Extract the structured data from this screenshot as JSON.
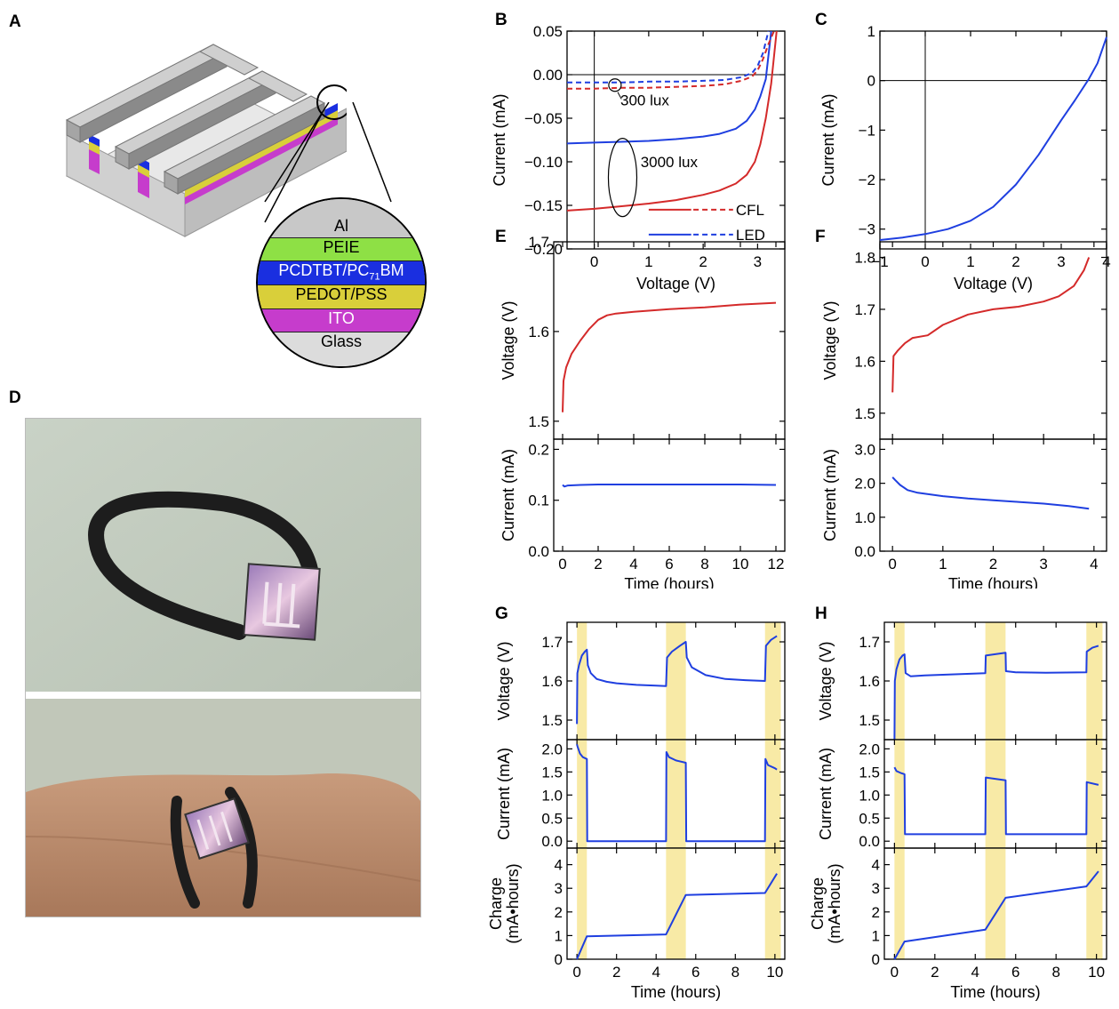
{
  "panel_letters": {
    "A": "A",
    "B": "B",
    "C": "C",
    "D": "D",
    "E": "E",
    "F": "F",
    "G": "G",
    "H": "H"
  },
  "device_layers": [
    {
      "label": "Al",
      "sub": "",
      "color": "#c8c8c8",
      "text_color": "#000"
    },
    {
      "label": "PEIE",
      "sub": "",
      "color": "#8ee045",
      "text_color": "#000"
    },
    {
      "label": "PCDTBT/PC",
      "sub": "71",
      "suffix": "BM",
      "color": "#1a2fe0",
      "text_color": "#ffffff"
    },
    {
      "label": "PEDOT/PSS",
      "sub": "",
      "color": "#d9cf3a",
      "text_color": "#000"
    },
    {
      "label": "ITO",
      "sub": "",
      "color": "#c63ccc",
      "text_color": "#ffffff"
    },
    {
      "label": "Glass",
      "sub": "",
      "color": "#dcdcdc",
      "text_color": "#000"
    }
  ],
  "colors": {
    "red": "#d42a2a",
    "blue": "#1f3fe0",
    "yellow_band": "#f8eaa6"
  },
  "chart_data": [
    {
      "id": "B",
      "type": "line",
      "xlabel": "Voltage (V)",
      "ylabel": "Current (mA)",
      "xlim": [
        -0.5,
        3.5
      ],
      "ylim": [
        -0.2,
        0.05
      ],
      "xticks": [
        0,
        1,
        2,
        3
      ],
      "yticks": [
        -0.2,
        -0.15,
        -0.1,
        -0.05,
        0,
        0.05
      ],
      "ytick_labels": [
        "−0.20",
        "−0.15",
        "−0.10",
        "−0.05",
        "0.00",
        "0.05"
      ],
      "annotations": [
        "300 lux",
        "3000 lux"
      ],
      "legend": [
        {
          "name": "CFL",
          "color": "#d42a2a"
        },
        {
          "name": "LED",
          "color": "#1f3fe0"
        }
      ],
      "series": [
        {
          "condition": "3000 lux",
          "source": "CFL",
          "dashed": false,
          "color": "#d42a2a",
          "x": [
            -0.5,
            0,
            0.5,
            1,
            1.5,
            2,
            2.3,
            2.6,
            2.8,
            2.95,
            3.05,
            3.15,
            3.25,
            3.35
          ],
          "y": [
            -0.156,
            -0.154,
            -0.151,
            -0.148,
            -0.144,
            -0.138,
            -0.133,
            -0.125,
            -0.115,
            -0.1,
            -0.08,
            -0.05,
            -0.01,
            0.05
          ]
        },
        {
          "condition": "3000 lux",
          "source": "LED",
          "dashed": false,
          "color": "#1f3fe0",
          "x": [
            -0.5,
            0,
            0.5,
            1,
            1.5,
            2,
            2.3,
            2.6,
            2.8,
            2.95,
            3.05,
            3.15,
            3.25
          ],
          "y": [
            -0.079,
            -0.078,
            -0.077,
            -0.076,
            -0.074,
            -0.071,
            -0.068,
            -0.062,
            -0.053,
            -0.04,
            -0.025,
            -0.005,
            0.05
          ]
        },
        {
          "condition": "300 lux",
          "source": "CFL",
          "dashed": true,
          "color": "#d42a2a",
          "x": [
            -0.5,
            0,
            0.5,
            1,
            1.5,
            2,
            2.4,
            2.7,
            2.9,
            3.0,
            3.1,
            3.2,
            3.3
          ],
          "y": [
            -0.016,
            -0.016,
            -0.015,
            -0.015,
            -0.014,
            -0.013,
            -0.011,
            -0.007,
            -0.002,
            0.005,
            0.018,
            0.035,
            0.05
          ]
        },
        {
          "condition": "300 lux",
          "source": "LED",
          "dashed": true,
          "color": "#1f3fe0",
          "x": [
            -0.5,
            0,
            0.5,
            1,
            1.5,
            2,
            2.4,
            2.7,
            2.9,
            3.0,
            3.1,
            3.2
          ],
          "y": [
            -0.009,
            -0.009,
            -0.009,
            -0.008,
            -0.008,
            -0.007,
            -0.006,
            -0.003,
            0.002,
            0.01,
            0.025,
            0.05
          ]
        }
      ]
    },
    {
      "id": "C",
      "type": "line",
      "xlabel": "Voltage (V)",
      "ylabel": "Current (mA)",
      "xlim": [
        -1,
        4
      ],
      "ylim": [
        -3.4,
        1
      ],
      "xticks": [
        -1,
        0,
        1,
        2,
        3,
        4
      ],
      "xtick_labels": [
        "−1",
        "0",
        "1",
        "2",
        "3",
        "4"
      ],
      "yticks": [
        -3,
        -2,
        -1,
        0,
        1
      ],
      "ytick_labels": [
        "−3",
        "−2",
        "−1",
        "0",
        "1"
      ],
      "series": [
        {
          "color": "#1f3fe0",
          "x": [
            -1,
            -0.5,
            0,
            0.5,
            1,
            1.5,
            2,
            2.5,
            3,
            3.3,
            3.6,
            3.8,
            4
          ],
          "y": [
            -3.22,
            -3.17,
            -3.1,
            -3.0,
            -2.83,
            -2.55,
            -2.1,
            -1.5,
            -0.8,
            -0.4,
            0.02,
            0.35,
            0.88
          ]
        }
      ]
    },
    {
      "id": "E",
      "type": "line",
      "xlabel": "Time (hours)",
      "xlim": [
        -0.5,
        12.5
      ],
      "xticks": [
        0,
        2,
        4,
        6,
        8,
        10,
        12
      ],
      "subplots": [
        {
          "ylabel": "Voltage (V)",
          "ylim": [
            1.48,
            1.7
          ],
          "yticks": [
            1.5,
            1.6,
            1.7
          ],
          "ytick_labels": [
            "1.5",
            "1.6",
            "1.7"
          ],
          "series": [
            {
              "color": "#d42a2a",
              "x": [
                0,
                0.05,
                0.2,
                0.5,
                1,
                1.5,
                2,
                2.5,
                3,
                4,
                6,
                8,
                10,
                12
              ],
              "y": [
                1.51,
                1.545,
                1.56,
                1.575,
                1.59,
                1.603,
                1.613,
                1.618,
                1.62,
                1.622,
                1.625,
                1.627,
                1.63,
                1.632
              ]
            }
          ]
        },
        {
          "ylabel": "Current (mA)",
          "ylim": [
            0,
            0.22
          ],
          "yticks": [
            0,
            0.1,
            0.2
          ],
          "ytick_labels": [
            "0.0",
            "0.1",
            "0.2"
          ],
          "series": [
            {
              "color": "#1f3fe0",
              "x": [
                0,
                0.1,
                0.3,
                1,
                2,
                4,
                6,
                8,
                10,
                12
              ],
              "y": [
                0.13,
                0.127,
                0.129,
                0.13,
                0.131,
                0.131,
                0.131,
                0.131,
                0.131,
                0.13
              ]
            }
          ]
        }
      ]
    },
    {
      "id": "F",
      "type": "line",
      "xlabel": "Time (hours)",
      "xlim": [
        -0.25,
        4.25
      ],
      "xticks": [
        0,
        1,
        2,
        3,
        4
      ],
      "subplots": [
        {
          "ylabel": "Voltage (V)",
          "ylim": [
            1.45,
            1.83
          ],
          "yticks": [
            1.5,
            1.6,
            1.7,
            1.8
          ],
          "ytick_labels": [
            "1.5",
            "1.6",
            "1.7",
            "1.8"
          ],
          "series": [
            {
              "color": "#d42a2a",
              "x": [
                0,
                0.02,
                0.1,
                0.25,
                0.4,
                0.7,
                1,
                1.5,
                2,
                2.5,
                3,
                3.3,
                3.6,
                3.8,
                3.9
              ],
              "y": [
                1.54,
                1.61,
                1.62,
                1.635,
                1.645,
                1.65,
                1.67,
                1.69,
                1.7,
                1.705,
                1.715,
                1.725,
                1.745,
                1.775,
                1.8
              ]
            }
          ]
        },
        {
          "ylabel": "Current (mA)",
          "ylim": [
            0,
            3.3
          ],
          "yticks": [
            0,
            1,
            2,
            3
          ],
          "ytick_labels": [
            "0.0",
            "1.0",
            "2.0",
            "3.0"
          ],
          "series": [
            {
              "color": "#1f3fe0",
              "x": [
                0,
                0.05,
                0.15,
                0.3,
                0.5,
                1,
                1.5,
                2,
                2.5,
                3,
                3.5,
                3.9
              ],
              "y": [
                2.18,
                2.1,
                1.95,
                1.8,
                1.72,
                1.62,
                1.55,
                1.5,
                1.45,
                1.4,
                1.33,
                1.25
              ]
            }
          ]
        }
      ]
    },
    {
      "id": "G",
      "type": "line",
      "xlabel": "Time (hours)",
      "xlim": [
        -0.5,
        10.5
      ],
      "xticks": [
        0,
        2,
        4,
        6,
        8,
        10
      ],
      "shaded_intervals": [
        [
          0,
          0.5
        ],
        [
          4.5,
          5.5
        ],
        [
          9.5,
          10.3
        ]
      ],
      "subplots": [
        {
          "ylabel": "Voltage (V)",
          "ylim": [
            1.45,
            1.75
          ],
          "yticks": [
            1.5,
            1.6,
            1.7
          ],
          "ytick_labels": [
            "1.5",
            "1.6",
            "1.7"
          ],
          "series": [
            {
              "color": "#1f3fe0",
              "x": [
                0,
                0.02,
                0.1,
                0.25,
                0.4,
                0.5,
                0.55,
                0.7,
                1,
                1.5,
                2,
                3,
                4,
                4.5,
                4.55,
                4.8,
                5.2,
                5.5,
                5.55,
                5.8,
                6.5,
                7.5,
                8.5,
                9.5,
                9.55,
                9.8,
                10.1
              ],
              "y": [
                1.49,
                1.62,
                1.64,
                1.665,
                1.675,
                1.68,
                1.64,
                1.62,
                1.605,
                1.598,
                1.594,
                1.59,
                1.588,
                1.587,
                1.66,
                1.675,
                1.69,
                1.7,
                1.66,
                1.635,
                1.615,
                1.605,
                1.602,
                1.6,
                1.69,
                1.705,
                1.715
              ]
            }
          ]
        },
        {
          "ylabel": "Current (mA)",
          "ylim": [
            -0.15,
            2.2
          ],
          "yticks": [
            0,
            0.5,
            1,
            1.5,
            2
          ],
          "ytick_labels": [
            "0.0",
            "0.5",
            "1.0",
            "1.5",
            "2.0"
          ],
          "series": [
            {
              "color": "#1f3fe0",
              "x": [
                0,
                0.03,
                0.15,
                0.3,
                0.5,
                0.52,
                4.5,
                4.52,
                4.65,
                5,
                5.5,
                5.52,
                9.5,
                9.52,
                9.65,
                10,
                10.1
              ],
              "y": [
                2.1,
                2.05,
                1.9,
                1.82,
                1.78,
                0,
                0,
                1.93,
                1.82,
                1.75,
                1.7,
                0,
                0,
                1.78,
                1.65,
                1.58,
                1.55
              ]
            }
          ]
        },
        {
          "ylabel": "Charge (mA•hours)",
          "ylim": [
            0,
            4.7
          ],
          "yticks": [
            0,
            1,
            2,
            3,
            4
          ],
          "ytick_labels": [
            "0",
            "1",
            "2",
            "3",
            "4"
          ],
          "series": [
            {
              "color": "#1f3fe0",
              "x": [
                0,
                0.5,
                4.5,
                5.5,
                9.5,
                10.1
              ],
              "y": [
                0,
                0.97,
                1.05,
                2.72,
                2.8,
                3.62
              ]
            }
          ]
        }
      ]
    },
    {
      "id": "H",
      "type": "line",
      "xlabel": "Time (hours)",
      "xlim": [
        -0.5,
        10.5
      ],
      "xticks": [
        0,
        2,
        4,
        6,
        8,
        10
      ],
      "shaded_intervals": [
        [
          0,
          0.5
        ],
        [
          4.5,
          5.5
        ],
        [
          9.5,
          10.3
        ]
      ],
      "subplots": [
        {
          "ylabel": "Voltage (V)",
          "ylim": [
            1.45,
            1.75
          ],
          "yticks": [
            1.5,
            1.6,
            1.7
          ],
          "ytick_labels": [
            "1.5",
            "1.6",
            "1.7"
          ],
          "series": [
            {
              "color": "#1f3fe0",
              "x": [
                0,
                0.02,
                0.1,
                0.25,
                0.4,
                0.5,
                0.55,
                0.8,
                1.5,
                3,
                4.5,
                4.52,
                5.5,
                5.52,
                6,
                7.5,
                9.5,
                9.52,
                9.8,
                10.1
              ],
              "y": [
                1.45,
                1.6,
                1.63,
                1.655,
                1.665,
                1.668,
                1.62,
                1.612,
                1.614,
                1.617,
                1.62,
                1.665,
                1.672,
                1.625,
                1.622,
                1.621,
                1.622,
                1.675,
                1.685,
                1.69
              ]
            }
          ]
        },
        {
          "ylabel": "Current (mA)",
          "ylim": [
            -0.15,
            2.2
          ],
          "yticks": [
            0,
            0.5,
            1,
            1.5,
            2
          ],
          "ytick_labels": [
            "0.0",
            "0.5",
            "1.0",
            "1.5",
            "2.0"
          ],
          "series": [
            {
              "color": "#1f3fe0",
              "x": [
                0,
                0.1,
                0.3,
                0.5,
                0.52,
                4.5,
                4.52,
                5.5,
                5.52,
                9.5,
                9.52,
                10.1
              ],
              "y": [
                1.6,
                1.52,
                1.48,
                1.45,
                0.15,
                0.15,
                1.38,
                1.32,
                0.15,
                0.15,
                1.28,
                1.22
              ]
            }
          ]
        },
        {
          "ylabel": "Charge (mA•hours)",
          "ylim": [
            0,
            4.7
          ],
          "yticks": [
            0,
            1,
            2,
            3,
            4
          ],
          "ytick_labels": [
            "0",
            "1",
            "2",
            "3",
            "4"
          ],
          "series": [
            {
              "color": "#1f3fe0",
              "x": [
                0,
                0.5,
                4.5,
                5.5,
                9.5,
                10.1
              ],
              "y": [
                0,
                0.75,
                1.25,
                2.6,
                3.08,
                3.72
              ]
            }
          ]
        }
      ]
    }
  ]
}
